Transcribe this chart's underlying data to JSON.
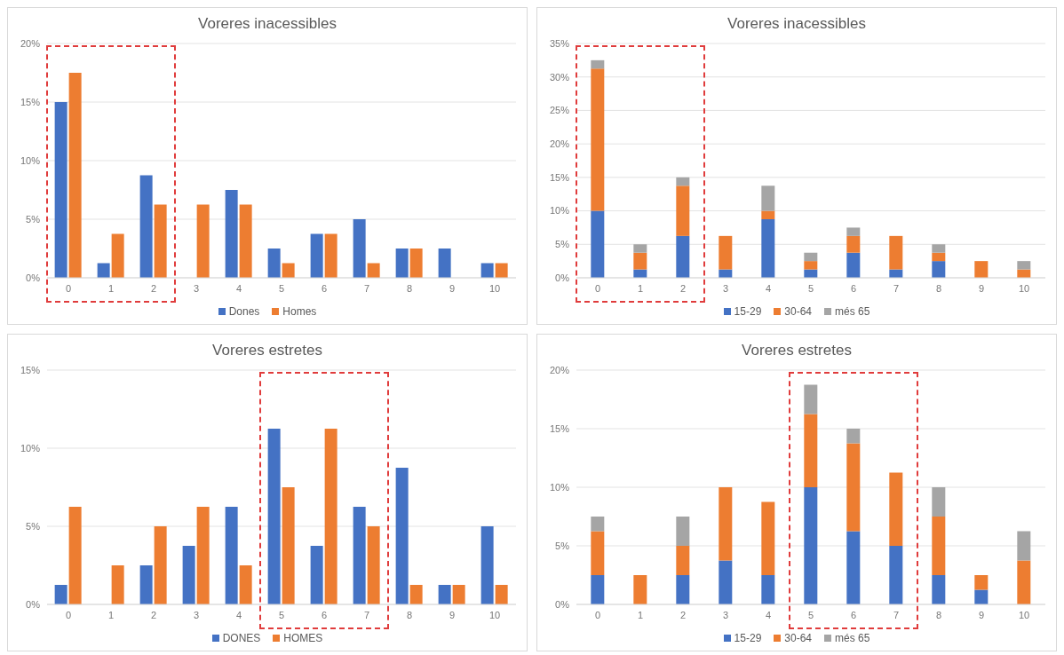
{
  "chart_data": [
    {
      "type": "bar",
      "title": "Voreres inacessibles",
      "categories": [
        "0",
        "1",
        "2",
        "3",
        "4",
        "5",
        "6",
        "7",
        "8",
        "9",
        "10"
      ],
      "series": [
        {
          "name": "Dones",
          "color": "#4472c4",
          "values": [
            15,
            1.25,
            8.75,
            0,
            7.5,
            2.5,
            3.75,
            5,
            2.5,
            2.5,
            1.25
          ]
        },
        {
          "name": "Homes",
          "color": "#ed7d31",
          "values": [
            17.5,
            3.75,
            6.25,
            6.25,
            6.25,
            1.25,
            3.75,
            1.25,
            2.5,
            0,
            1.25
          ]
        }
      ],
      "ylim": [
        0,
        20
      ],
      "yticks": [
        {
          "value": 0,
          "label": "0%"
        },
        {
          "value": 5,
          "label": "5%"
        },
        {
          "value": 10,
          "label": "10%"
        },
        {
          "value": 15,
          "label": "15%"
        },
        {
          "value": 20,
          "label": "20%"
        }
      ],
      "grid": "y",
      "legend": "bottom"
    },
    {
      "type": "bar",
      "title": "Voreres inacessibles",
      "categories": [
        "0",
        "1",
        "2",
        "3",
        "4",
        "5",
        "6",
        "7",
        "8",
        "9",
        "10"
      ],
      "stacked": true,
      "series": [
        {
          "name": "15-29",
          "color": "#4472c4",
          "values": [
            10,
            1.25,
            6.25,
            1.25,
            8.75,
            1.25,
            3.75,
            1.25,
            2.5,
            0,
            0
          ]
        },
        {
          "name": "30-64",
          "color": "#ed7d31",
          "values": [
            21.25,
            2.5,
            7.5,
            5,
            1.25,
            1.25,
            2.5,
            5,
            1.25,
            2.5,
            1.25
          ]
        },
        {
          "name": "més 65",
          "color": "#a5a5a5",
          "values": [
            1.25,
            1.25,
            1.25,
            0,
            3.75,
            1.25,
            1.25,
            0,
            1.25,
            0,
            1.25
          ]
        }
      ],
      "ylim": [
        0,
        35
      ],
      "yticks": [
        {
          "value": 0,
          "label": "0%"
        },
        {
          "value": 5,
          "label": "5%"
        },
        {
          "value": 10,
          "label": "10%"
        },
        {
          "value": 15,
          "label": "15%"
        },
        {
          "value": 20,
          "label": "20%"
        },
        {
          "value": 25,
          "label": "25%"
        },
        {
          "value": 30,
          "label": "30%"
        },
        {
          "value": 35,
          "label": "35%"
        }
      ],
      "grid": "y",
      "legend": "bottom"
    },
    {
      "type": "bar",
      "title": "Voreres estretes",
      "categories": [
        "0",
        "1",
        "2",
        "3",
        "4",
        "5",
        "6",
        "7",
        "8",
        "9",
        "10"
      ],
      "series": [
        {
          "name": "DONES",
          "color": "#4472c4",
          "values": [
            1.25,
            0,
            2.5,
            3.75,
            6.25,
            11.25,
            3.75,
            6.25,
            8.75,
            1.25,
            5
          ]
        },
        {
          "name": "HOMES",
          "color": "#ed7d31",
          "values": [
            6.25,
            2.5,
            5,
            6.25,
            2.5,
            7.5,
            11.25,
            5,
            1.25,
            1.25,
            1.25
          ]
        }
      ],
      "ylim": [
        0,
        15
      ],
      "yticks": [
        {
          "value": 0,
          "label": "0%"
        },
        {
          "value": 5,
          "label": "5%"
        },
        {
          "value": 10,
          "label": "10%"
        },
        {
          "value": 15,
          "label": "15%"
        }
      ],
      "grid": "y",
      "legend": "bottom"
    },
    {
      "type": "bar",
      "title": "Voreres estretes",
      "categories": [
        "0",
        "1",
        "2",
        "3",
        "4",
        "5",
        "6",
        "7",
        "8",
        "9",
        "10"
      ],
      "stacked": true,
      "series": [
        {
          "name": "15-29",
          "color": "#4472c4",
          "values": [
            2.5,
            0,
            2.5,
            3.75,
            2.5,
            10,
            6.25,
            5,
            2.5,
            1.25,
            0
          ]
        },
        {
          "name": "30-64",
          "color": "#ed7d31",
          "values": [
            3.75,
            2.5,
            2.5,
            6.25,
            6.25,
            6.25,
            7.5,
            6.25,
            5,
            1.25,
            3.75
          ]
        },
        {
          "name": "més 65",
          "color": "#a5a5a5",
          "values": [
            1.25,
            0,
            2.5,
            0,
            0,
            2.5,
            1.25,
            0,
            2.5,
            0,
            2.5
          ]
        }
      ],
      "ylim": [
        0,
        20
      ],
      "yticks": [
        {
          "value": 0,
          "label": "0%"
        },
        {
          "value": 5,
          "label": "5%"
        },
        {
          "value": 10,
          "label": "10%"
        },
        {
          "value": 15,
          "label": "15%"
        },
        {
          "value": 20,
          "label": "20%"
        }
      ],
      "grid": "y",
      "legend": "bottom"
    }
  ]
}
